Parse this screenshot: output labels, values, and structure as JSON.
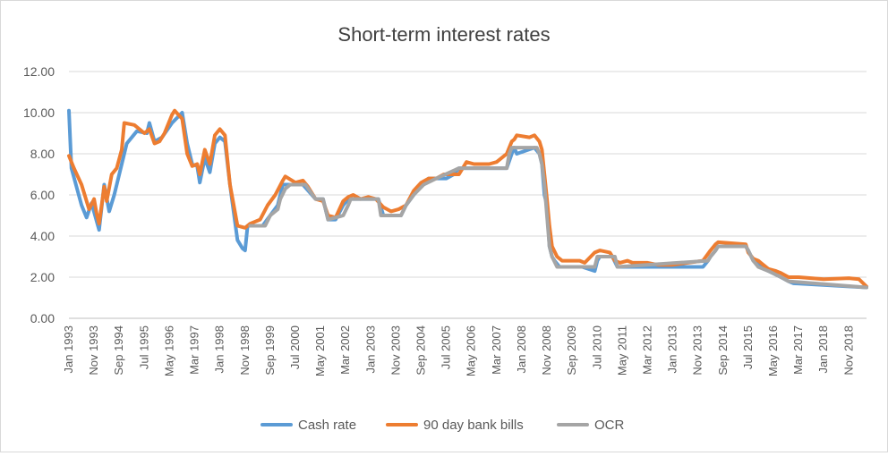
{
  "chart_data": {
    "type": "line",
    "title": "Short-term interest rates",
    "xlabel": "",
    "ylabel": "",
    "ylim": [
      0,
      12
    ],
    "yticks": [
      "0.00",
      "2.00",
      "4.00",
      "6.00",
      "8.00",
      "10.00",
      "12.00"
    ],
    "x_start": "Jan 1993",
    "x_end": "Jun 2019",
    "xtick_labels": [
      "Jan 1993",
      "Nov 1993",
      "Sep 1994",
      "Jul 1995",
      "May 1996",
      "Mar 1997",
      "Jan 1998",
      "Nov 1998",
      "Sep 1999",
      "Jul 2000",
      "May 2001",
      "Mar 2002",
      "Jan 2003",
      "Nov 2003",
      "Sep 2004",
      "Jul 2005",
      "May 2006",
      "Mar 2007",
      "Jan 2008",
      "Nov 2008",
      "Sep 2009",
      "Jul 2010",
      "May 2011",
      "Mar 2012",
      "Jan 2013",
      "Nov 2013",
      "Sep 2014",
      "Jul 2015",
      "May 2016",
      "Mar 2017",
      "Jan 2018",
      "Nov 2018"
    ],
    "grid": true,
    "legend_position": "bottom",
    "series": [
      {
        "name": "Cash rate",
        "color": "#5b9bd5",
        "points": [
          [
            "Jan 1993",
            10.1
          ],
          [
            "Feb 1993",
            7.3
          ],
          [
            "Jun 1993",
            5.5
          ],
          [
            "Aug 1993",
            4.9
          ],
          [
            "Oct 1993",
            5.6
          ],
          [
            "Jan 1994",
            4.3
          ],
          [
            "Mar 1994",
            6.5
          ],
          [
            "May 1994",
            5.2
          ],
          [
            "Jul 1994",
            6.0
          ],
          [
            "Oct 1994",
            7.5
          ],
          [
            "Dec 1994",
            8.5
          ],
          [
            "Apr 1995",
            9.1
          ],
          [
            "Aug 1995",
            9.0
          ],
          [
            "Sep 1995",
            9.5
          ],
          [
            "Nov 1995",
            8.6
          ],
          [
            "Feb 1996",
            8.8
          ],
          [
            "Jun 1996",
            9.5
          ],
          [
            "Oct 1996",
            10.0
          ],
          [
            "Dec 1996",
            8.5
          ],
          [
            "Feb 1997",
            7.5
          ],
          [
            "Apr 1997",
            7.4
          ],
          [
            "May 1997",
            6.6
          ],
          [
            "Jul 1997",
            7.8
          ],
          [
            "Sep 1997",
            7.1
          ],
          [
            "Nov 1997",
            8.5
          ],
          [
            "Jan 1998",
            8.8
          ],
          [
            "Mar 1998",
            8.6
          ],
          [
            "May 1998",
            6.5
          ],
          [
            "Aug 1998",
            3.8
          ],
          [
            "Oct 1998",
            3.4
          ],
          [
            "Nov 1998",
            3.3
          ],
          [
            "Dec 1998",
            4.5
          ],
          [
            "Mar 1999",
            4.5
          ],
          [
            "Jun 1999",
            4.5
          ],
          [
            "Sep 1999",
            5.0
          ],
          [
            "Dec 1999",
            5.5
          ],
          [
            "Feb 2000",
            6.5
          ],
          [
            "Jul 2000",
            6.5
          ],
          [
            "Oct 2000",
            6.5
          ],
          [
            "Mar 2001",
            5.8
          ],
          [
            "Jun 2001",
            5.8
          ],
          [
            "Aug 2001",
            4.8
          ],
          [
            "Nov 2001",
            4.8
          ],
          [
            "Feb 2002",
            5.5
          ],
          [
            "Apr 2002",
            5.8
          ],
          [
            "Dec 2002",
            5.8
          ],
          [
            "Apr 2003",
            5.8
          ],
          [
            "Jun 2003",
            5.0
          ],
          [
            "Jan 2004",
            5.0
          ],
          [
            "Mar 2004",
            5.5
          ],
          [
            "Jun 2004",
            6.0
          ],
          [
            "Sep 2004",
            6.5
          ],
          [
            "Dec 2004",
            6.8
          ],
          [
            "Jul 2005",
            6.8
          ],
          [
            "Oct 2005",
            7.0
          ],
          [
            "Dec 2005",
            7.3
          ],
          [
            "Jul 2007",
            7.3
          ],
          [
            "Sep 2007",
            8.0
          ],
          [
            "Oct 2007",
            8.3
          ],
          [
            "Nov 2007",
            8.0
          ],
          [
            "Jun 2008",
            8.3
          ],
          [
            "Aug 2008",
            8.0
          ],
          [
            "Sep 2008",
            7.5
          ],
          [
            "Oct 2008",
            6.0
          ],
          [
            "Nov 2008",
            5.5
          ],
          [
            "Dec 2008",
            3.5
          ],
          [
            "Jan 2009",
            3.0
          ],
          [
            "Feb 2009",
            2.8
          ],
          [
            "Apr 2009",
            2.5
          ],
          [
            "Jan 2010",
            2.5
          ],
          [
            "Jun 2010",
            2.3
          ],
          [
            "Jul 2010",
            2.8
          ],
          [
            "Aug 2010",
            3.0
          ],
          [
            "Jan 2011",
            3.0
          ],
          [
            "Mar 2011",
            2.5
          ],
          [
            "Jan 2013",
            2.5
          ],
          [
            "Jan 2014",
            2.5
          ],
          [
            "Mar 2014",
            2.8
          ],
          [
            "Apr 2014",
            3.0
          ],
          [
            "Jun 2014",
            3.3
          ],
          [
            "Jul 2014",
            3.5
          ],
          [
            "Jun 2015",
            3.5
          ],
          [
            "Jul 2015",
            3.3
          ],
          [
            "Sep 2015",
            2.8
          ],
          [
            "Dec 2015",
            2.5
          ],
          [
            "Mar 2016",
            2.3
          ],
          [
            "Aug 2016",
            2.0
          ],
          [
            "Nov 2016",
            1.8
          ],
          [
            "Jan 2017",
            1.7
          ],
          [
            "Jun 2019",
            1.5
          ]
        ]
      },
      {
        "name": "90 day bank bills",
        "color": "#ed7d31",
        "points": [
          [
            "Jan 1993",
            7.9
          ],
          [
            "Mar 1993",
            7.3
          ],
          [
            "Jun 1993",
            6.5
          ],
          [
            "Sep 1993",
            5.3
          ],
          [
            "Nov 1993",
            5.8
          ],
          [
            "Dec 1993",
            5.1
          ],
          [
            "Jan 1994",
            4.6
          ],
          [
            "Mar 1994",
            6.4
          ],
          [
            "Apr 1994",
            5.7
          ],
          [
            "Jun 1994",
            7.0
          ],
          [
            "Aug 1994",
            7.3
          ],
          [
            "Oct 1994",
            8.2
          ],
          [
            "Nov 1994",
            9.5
          ],
          [
            "Mar 1995",
            9.4
          ],
          [
            "Jul 1995",
            9.0
          ],
          [
            "Sep 1995",
            9.2
          ],
          [
            "Nov 1995",
            8.5
          ],
          [
            "Jan 1996",
            8.6
          ],
          [
            "Mar 1996",
            9.0
          ],
          [
            "Jun 1996",
            9.9
          ],
          [
            "Jul 1996",
            10.1
          ],
          [
            "Oct 1996",
            9.7
          ],
          [
            "Dec 1996",
            8.0
          ],
          [
            "Feb 1997",
            7.4
          ],
          [
            "Apr 1997",
            7.5
          ],
          [
            "May 1997",
            7.0
          ],
          [
            "Jul 1997",
            8.2
          ],
          [
            "Sep 1997",
            7.5
          ],
          [
            "Nov 1997",
            8.9
          ],
          [
            "Jan 1998",
            9.2
          ],
          [
            "Mar 1998",
            8.9
          ],
          [
            "May 1998",
            6.5
          ],
          [
            "Aug 1998",
            4.5
          ],
          [
            "Nov 1998",
            4.4
          ],
          [
            "Jan 1999",
            4.6
          ],
          [
            "May 1999",
            4.8
          ],
          [
            "Aug 1999",
            5.5
          ],
          [
            "Nov 1999",
            6.0
          ],
          [
            "Feb 2000",
            6.7
          ],
          [
            "Mar 2000",
            6.9
          ],
          [
            "Jul 2000",
            6.6
          ],
          [
            "Oct 2000",
            6.7
          ],
          [
            "Dec 2000",
            6.4
          ],
          [
            "Mar 2001",
            5.8
          ],
          [
            "Jun 2001",
            5.7
          ],
          [
            "Aug 2001",
            5.0
          ],
          [
            "Nov 2001",
            4.9
          ],
          [
            "Feb 2002",
            5.7
          ],
          [
            "Apr 2002",
            5.9
          ],
          [
            "Jun 2002",
            6.0
          ],
          [
            "Sep 2002",
            5.8
          ],
          [
            "Dec 2002",
            5.9
          ],
          [
            "Mar 2003",
            5.8
          ],
          [
            "Jun 2003",
            5.4
          ],
          [
            "Sep 2003",
            5.2
          ],
          [
            "Dec 2003",
            5.3
          ],
          [
            "Mar 2004",
            5.5
          ],
          [
            "Jun 2004",
            6.2
          ],
          [
            "Sep 2004",
            6.6
          ],
          [
            "Dec 2004",
            6.8
          ],
          [
            "Mar 2005",
            6.8
          ],
          [
            "Jun 2005",
            7.0
          ],
          [
            "Dec 2005",
            7.0
          ],
          [
            "Mar 2006",
            7.6
          ],
          [
            "Jun 2006",
            7.5
          ],
          [
            "Dec 2006",
            7.5
          ],
          [
            "Mar 2007",
            7.6
          ],
          [
            "Jul 2007",
            8.0
          ],
          [
            "Sep 2007",
            8.6
          ],
          [
            "Oct 2007",
            8.7
          ],
          [
            "Nov 2007",
            8.9
          ],
          [
            "Apr 2008",
            8.8
          ],
          [
            "Jun 2008",
            8.9
          ],
          [
            "Aug 2008",
            8.6
          ],
          [
            "Sep 2008",
            8.2
          ],
          [
            "Oct 2008",
            7.0
          ],
          [
            "Nov 2008",
            5.8
          ],
          [
            "Dec 2008",
            4.5
          ],
          [
            "Jan 2009",
            3.5
          ],
          [
            "Mar 2009",
            3.0
          ],
          [
            "May 2009",
            2.8
          ],
          [
            "Dec 2009",
            2.8
          ],
          [
            "Feb 2010",
            2.7
          ],
          [
            "Jun 2010",
            3.2
          ],
          [
            "Aug 2010",
            3.3
          ],
          [
            "Dec 2010",
            3.2
          ],
          [
            "Feb 2011",
            2.8
          ],
          [
            "Apr 2011",
            2.7
          ],
          [
            "Jul 2011",
            2.8
          ],
          [
            "Sep 2011",
            2.7
          ],
          [
            "Mar 2012",
            2.7
          ],
          [
            "Jul 2012",
            2.6
          ],
          [
            "Jan 2013",
            2.6
          ],
          [
            "Jan 2014",
            2.8
          ],
          [
            "Apr 2014",
            3.3
          ],
          [
            "Jun 2014",
            3.6
          ],
          [
            "Jul 2014",
            3.7
          ],
          [
            "Jun 2015",
            3.6
          ],
          [
            "Jul 2015",
            3.2
          ],
          [
            "Sep 2015",
            2.9
          ],
          [
            "Nov 2015",
            2.8
          ],
          [
            "Dec 2015",
            2.7
          ],
          [
            "Mar 2016",
            2.4
          ],
          [
            "Jun 2016",
            2.3
          ],
          [
            "Aug 2016",
            2.2
          ],
          [
            "Nov 2016",
            2.0
          ],
          [
            "Mar 2017",
            2.0
          ],
          [
            "Jan 2018",
            1.9
          ],
          [
            "Nov 2018",
            1.95
          ],
          [
            "Mar 2019",
            1.9
          ],
          [
            "Jun 2019",
            1.55
          ]
        ]
      },
      {
        "name": "OCR",
        "color": "#a5a5a5",
        "points": [
          [
            "Jan 1999",
            4.5
          ],
          [
            "Jul 1999",
            4.5
          ],
          [
            "Sep 1999",
            5.0
          ],
          [
            "Dec 1999",
            5.3
          ],
          [
            "Jan 2000",
            5.8
          ],
          [
            "Mar 2000",
            6.3
          ],
          [
            "May 2000",
            6.5
          ],
          [
            "Nov 2000",
            6.5
          ],
          [
            "Mar 2001",
            5.8
          ],
          [
            "Jun 2001",
            5.8
          ],
          [
            "Aug 2001",
            4.8
          ],
          [
            "Feb 2002",
            5.0
          ],
          [
            "Apr 2002",
            5.5
          ],
          [
            "May 2002",
            5.8
          ],
          [
            "Apr 2003",
            5.8
          ],
          [
            "May 2003",
            5.0
          ],
          [
            "Jan 2004",
            5.0
          ],
          [
            "Mar 2004",
            5.5
          ],
          [
            "Jun 2004",
            6.0
          ],
          [
            "Oct 2004",
            6.5
          ],
          [
            "Mar 2005",
            6.8
          ],
          [
            "Dec 2005",
            7.3
          ],
          [
            "Jul 2007",
            7.3
          ],
          [
            "Aug 2007",
            8.0
          ],
          [
            "Sep 2007",
            8.3
          ],
          [
            "Jul 2008",
            8.3
          ],
          [
            "Aug 2008",
            8.0
          ],
          [
            "Sep 2008",
            7.5
          ],
          [
            "Oct 2008",
            6.5
          ],
          [
            "Nov 2008",
            5.0
          ],
          [
            "Dec 2008",
            3.5
          ],
          [
            "Jan 2009",
            3.0
          ],
          [
            "Mar 2009",
            2.5
          ],
          [
            "Jun 2010",
            2.5
          ],
          [
            "Jul 2010",
            3.0
          ],
          [
            "Feb 2011",
            3.0
          ],
          [
            "Mar 2011",
            2.5
          ],
          [
            "Mar 2014",
            2.8
          ],
          [
            "Apr 2014",
            3.0
          ],
          [
            "Jun 2014",
            3.3
          ],
          [
            "Jul 2014",
            3.5
          ],
          [
            "Jun 2015",
            3.5
          ],
          [
            "Jul 2015",
            3.3
          ],
          [
            "Sep 2015",
            2.8
          ],
          [
            "Nov 2015",
            2.5
          ],
          [
            "Mar 2016",
            2.3
          ],
          [
            "Aug 2016",
            2.0
          ],
          [
            "Nov 2016",
            1.8
          ],
          [
            "Jun 2019",
            1.5
          ]
        ]
      }
    ]
  }
}
